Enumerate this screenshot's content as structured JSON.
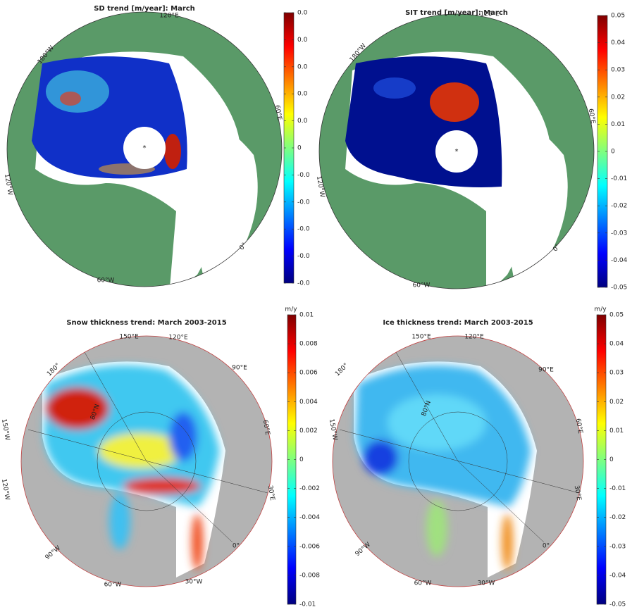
{
  "panels": [
    {
      "title": "SD trend [m/year]: March",
      "labels": [
        "120°E",
        "180°W",
        "60°E",
        "120°W",
        "0°",
        "60°W"
      ],
      "colorbar": {
        "lim": [
          -0.01,
          0.01
        ],
        "ticks": [
          {
            "value": 0.01,
            "label": "0.0"
          },
          {
            "value": 0.008,
            "label": "0.0"
          },
          {
            "value": 0.006,
            "label": "0.0"
          },
          {
            "value": 0.004,
            "label": "0.0"
          },
          {
            "value": 0.002,
            "label": "0.0"
          },
          0,
          {
            "value": -0.002,
            "label": "-0.0"
          },
          {
            "value": -0.004,
            "label": "-0.0"
          },
          {
            "value": -0.006,
            "label": "-0.0"
          },
          {
            "value": -0.008,
            "label": "-0.0"
          },
          {
            "value": -0.01,
            "label": "-0.0"
          }
        ]
      }
    },
    {
      "title": "SIT trend [m/year]: March",
      "labels": [
        "120°E",
        "180°W",
        "60°E",
        "120°W",
        "0°",
        "60°W"
      ],
      "colorbar": {
        "lim": [
          -0.05,
          0.05
        ],
        "ticks": [
          0.05,
          0.04,
          0.03,
          0.02,
          0.01,
          0,
          -0.01,
          -0.02,
          -0.03,
          -0.04,
          -0.05
        ]
      }
    },
    {
      "title": "Snow thickness trend: March 2003-2015",
      "unit": "m/y",
      "labels": [
        "150°E",
        "120°E",
        "90°E",
        "60°E",
        "30°E",
        "0°",
        "30°W",
        "60°W",
        "90°W",
        "120°W",
        "150°W",
        "180°",
        "80°N"
      ],
      "colorbar": {
        "lim": [
          -0.01,
          0.01
        ],
        "ticks": [
          0.01,
          0.008,
          0.006,
          0.004,
          0.002,
          0,
          -0.002,
          -0.004,
          -0.006,
          -0.008,
          -0.01
        ]
      }
    },
    {
      "title": "Ice thickness trend: March 2003-2015",
      "unit": "m/y",
      "labels": [
        "150°E",
        "120°E",
        "90°E",
        "60°E",
        "30°E",
        "0°",
        "30°W",
        "60°W",
        "90°W",
        "150°W",
        "180°",
        "80°N"
      ],
      "colorbar": {
        "lim": [
          -0.05,
          0.05
        ],
        "ticks": [
          0.05,
          0.04,
          0.03,
          0.02,
          0.01,
          0,
          -0.01,
          -0.02,
          -0.03,
          -0.04,
          -0.05
        ]
      }
    }
  ]
}
